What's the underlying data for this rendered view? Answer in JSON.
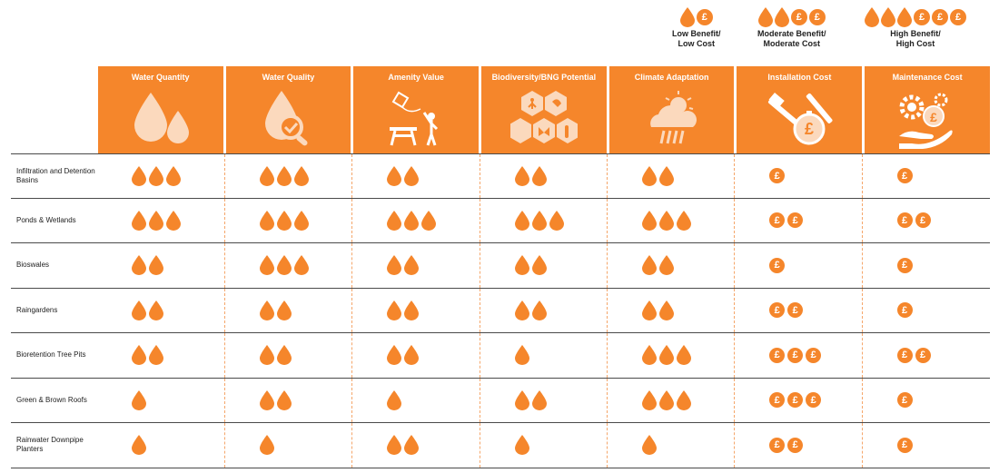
{
  "legend": [
    {
      "drops": 1,
      "coins": 1,
      "label": "Low Benefit/\nLow Cost"
    },
    {
      "drops": 2,
      "coins": 2,
      "label": "Moderate Benefit/\nModerate Cost"
    },
    {
      "drops": 3,
      "coins": 3,
      "label": "High Benefit/\nHigh Cost"
    }
  ],
  "currency_symbol": "£",
  "colors": {
    "accent": "#f5862b",
    "accent_light": "#fbd9bd"
  },
  "columns": [
    {
      "title": "Water Quantity",
      "icon": "water-drops-icon",
      "kind": "benefit"
    },
    {
      "title": "Water Quality",
      "icon": "water-quality-magnifier-icon",
      "kind": "benefit"
    },
    {
      "title": "Amenity Value",
      "icon": "picnic-kite-person-icon",
      "kind": "benefit"
    },
    {
      "title": "Biodiversity/BNG Potential",
      "icon": "hexagon-wildlife-icon",
      "kind": "benefit"
    },
    {
      "title": "Climate Adaptation",
      "icon": "sun-cloud-rain-icon",
      "kind": "benefit"
    },
    {
      "title": "Installation Cost",
      "icon": "tools-stopwatch-pound-icon",
      "kind": "cost"
    },
    {
      "title": "Maintenance Cost",
      "icon": "gears-hand-pound-icon",
      "kind": "cost"
    }
  ],
  "rows": [
    {
      "label": "Infiltration and Detention Basins",
      "values": [
        3,
        3,
        2,
        2,
        2,
        1,
        1
      ]
    },
    {
      "label": "Ponds & Wetlands",
      "values": [
        3,
        3,
        3,
        3,
        3,
        2,
        2
      ]
    },
    {
      "label": "Bioswales",
      "values": [
        2,
        3,
        2,
        2,
        2,
        1,
        1
      ]
    },
    {
      "label": "Raingardens",
      "values": [
        2,
        2,
        2,
        2,
        2,
        2,
        1
      ]
    },
    {
      "label": "Bioretention Tree Pits",
      "values": [
        2,
        2,
        2,
        1,
        3,
        3,
        2
      ]
    },
    {
      "label": "Green & Brown Roofs",
      "values": [
        1,
        2,
        1,
        2,
        3,
        3,
        1
      ]
    },
    {
      "label": "Rainwater Downpipe Planters",
      "values": [
        1,
        1,
        2,
        1,
        1,
        2,
        1
      ]
    }
  ]
}
